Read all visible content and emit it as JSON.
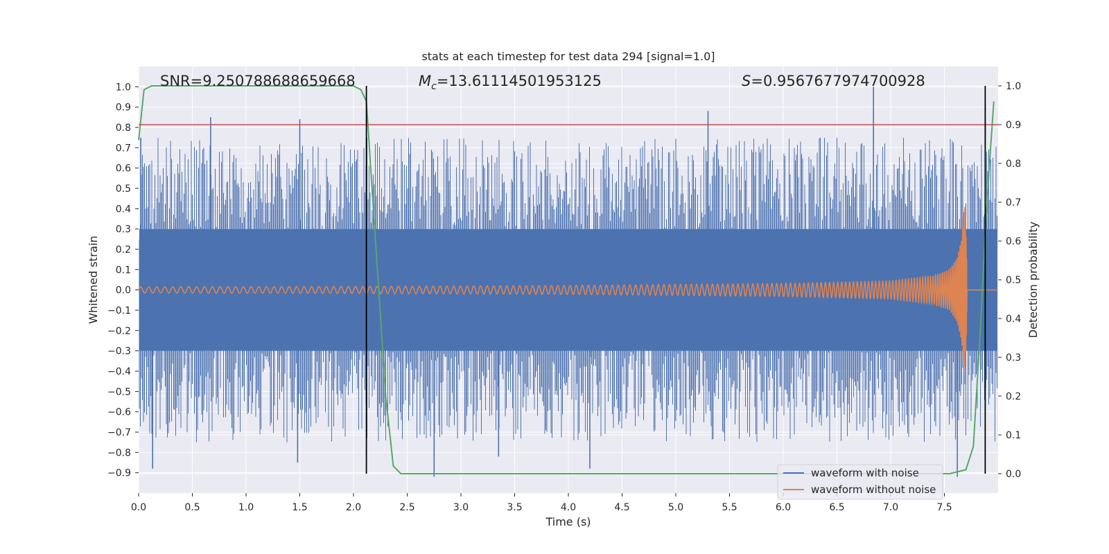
{
  "chart_data": {
    "type": "line",
    "title": "stats at each timestep for test data 294 [signal=1.0]",
    "xlabel": "Time (s)",
    "ylabel": "Whitened strain",
    "y2label": "Detection probability",
    "xlim": [
      0.0,
      8.0
    ],
    "ylim": [
      -1.0,
      1.1
    ],
    "y2lim": [
      -0.05,
      1.05
    ],
    "grid": true,
    "legend_position": "lower-right",
    "x_ticks": [
      "0.0",
      "0.5",
      "1.0",
      "1.5",
      "2.0",
      "2.5",
      "3.0",
      "3.5",
      "4.0",
      "4.5",
      "5.0",
      "5.5",
      "6.0",
      "6.5",
      "7.0",
      "7.5"
    ],
    "y_ticks": [
      "1.0",
      "0.9",
      "0.8",
      "0.7",
      "0.6",
      "0.5",
      "0.4",
      "0.3",
      "0.2",
      "0.1",
      "0.0",
      "−0.1",
      "−0.2",
      "−0.3",
      "−0.4",
      "−0.5",
      "−0.6",
      "−0.7",
      "−0.8",
      "−0.9"
    ],
    "y2_ticks": [
      "1.0",
      "0.9",
      "0.8",
      "0.7",
      "0.6",
      "0.5",
      "0.4",
      "0.3",
      "0.2",
      "0.1",
      "0.0"
    ],
    "annotations": {
      "snr": "SNR=9.250788688659668",
      "mc_symbol": "M",
      "mc_sub": "c",
      "mc_value": "=13.61114501953125",
      "s_symbol": "S",
      "s_value": "=0.9567677974700928"
    },
    "threshold_y2": 0.9,
    "vertical_lines_x": [
      2.12,
      7.88
    ],
    "colors": {
      "background": "#eaeaf2",
      "grid": "#ffffff",
      "noise": "#4c72b0",
      "signal": "#dd8452",
      "probability": "#55a868",
      "threshold": "#c44e52",
      "vline": "#000000"
    },
    "series": [
      {
        "name": "waveform with noise",
        "envelope_band": [
          -0.3,
          0.3
        ],
        "typical_peak_range": [
          0.45,
          0.75
        ],
        "peaks": [
          [
            0.02,
            0.75
          ],
          [
            0.67,
            0.85
          ],
          [
            1.5,
            0.84
          ],
          [
            5.3,
            0.88
          ],
          [
            6.84,
            1.0
          ],
          [
            7.88,
            0.83
          ],
          [
            0.13,
            -0.88
          ],
          [
            1.48,
            -0.85
          ],
          [
            2.75,
            -0.92
          ],
          [
            3.35,
            -0.82
          ],
          [
            4.2,
            -0.88
          ],
          [
            7.62,
            -0.92
          ]
        ]
      },
      {
        "name": "waveform without noise",
        "x": [
          0.0,
          2.0,
          4.0,
          6.0,
          7.0,
          7.4,
          7.55,
          7.62,
          7.66,
          7.69,
          7.7,
          7.72,
          8.0
        ],
        "amplitude": [
          0.015,
          0.017,
          0.022,
          0.032,
          0.045,
          0.07,
          0.1,
          0.16,
          0.25,
          0.43,
          0.3,
          0.0,
          0.0
        ]
      },
      {
        "name": "detection probability",
        "x": [
          0.0,
          0.05,
          0.12,
          0.2,
          1.8,
          2.0,
          2.07,
          2.12,
          2.2,
          2.3,
          2.37,
          2.44,
          2.55,
          3.5,
          7.4,
          7.55,
          7.7,
          7.77,
          7.83,
          7.88,
          7.92,
          7.96
        ],
        "y": [
          0.86,
          0.99,
          1.0,
          1.0,
          1.0,
          1.0,
          0.99,
          0.96,
          0.62,
          0.2,
          0.02,
          0.0,
          0.0,
          0.0,
          0.0,
          0.0,
          0.01,
          0.07,
          0.35,
          0.62,
          0.8,
          0.96
        ]
      }
    ]
  }
}
